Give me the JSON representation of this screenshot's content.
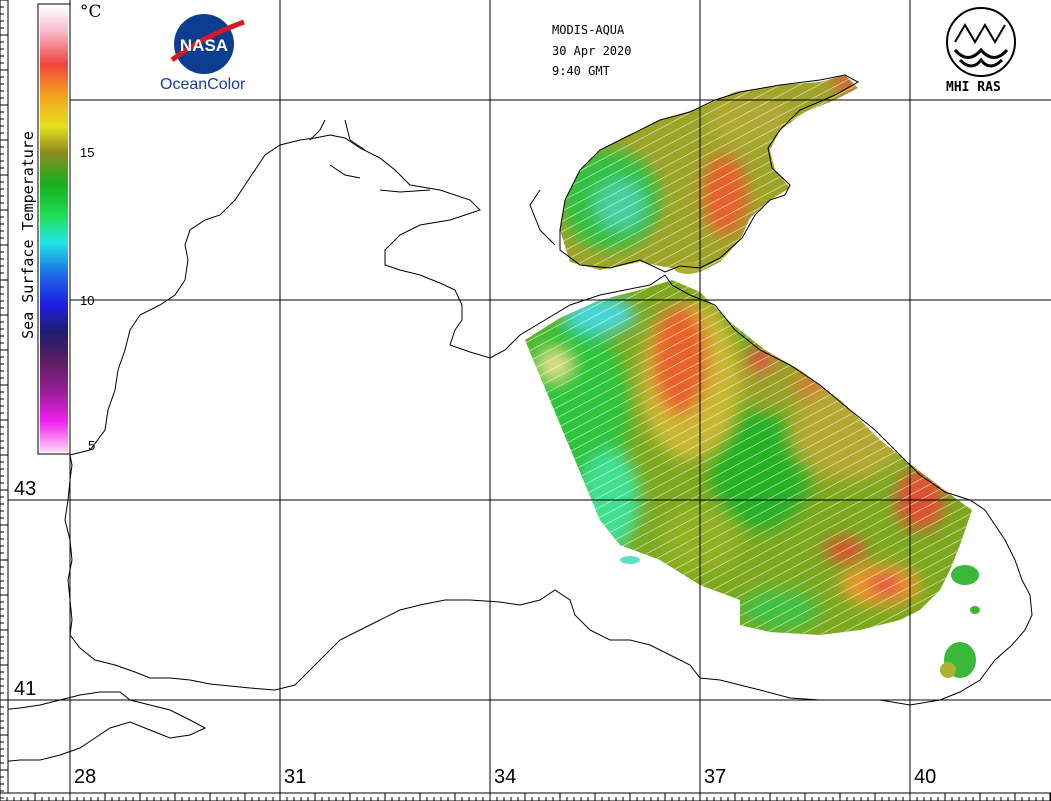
{
  "header": {
    "sensor": "MODIS-AQUA",
    "date": "30 Apr 2020",
    "time": "9:40 GMT"
  },
  "logos": {
    "left_text": "NASA",
    "left_caption": "OceanColor",
    "right_caption": "MHI RAS"
  },
  "colorbar": {
    "title": "Sea Surface Temperature",
    "unit": "°C",
    "ticks": [
      "15",
      "10",
      "5"
    ],
    "min": 5,
    "max": 20
  },
  "grid": {
    "lon_labels": [
      "28",
      "31",
      "34",
      "37",
      "40"
    ],
    "lat_labels": [
      "43",
      "41"
    ]
  },
  "colors": {
    "coastline": "#000000",
    "grid": "#000000",
    "nasa_blue": "#0b3d91",
    "nasa_red": "#d31b25"
  }
}
